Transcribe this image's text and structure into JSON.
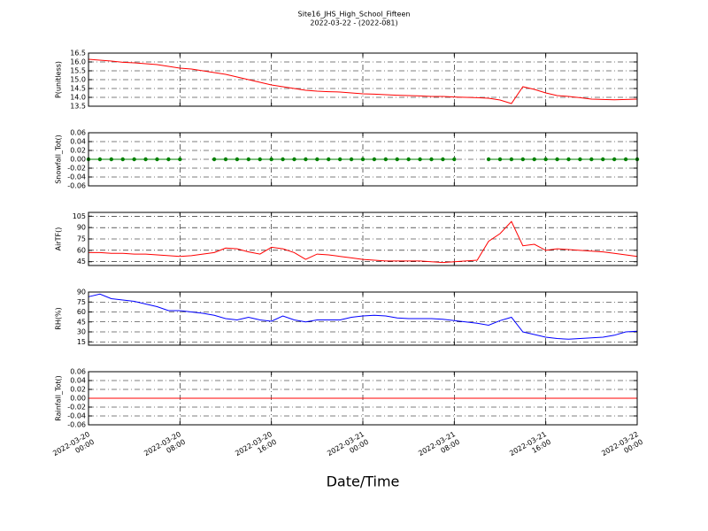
{
  "title": "Site16_JHS_High_School_Fifteen",
  "subtitle": "2022-03-22 - (2022-081)",
  "xlabel": "Date/Time",
  "xlim": [
    "2022-03-20 00:00",
    "2022-03-22 00:00"
  ],
  "xticks": [
    {
      "value": "2022-03-20 00:00",
      "label": "2022-03-20\n00:00"
    },
    {
      "value": "2022-03-20 08:00",
      "label": "2022-03-20\n08:00"
    },
    {
      "value": "2022-03-20 16:00",
      "label": "2022-03-20\n16:00"
    },
    {
      "value": "2022-03-21 00:00",
      "label": "2022-03-21\n00:00"
    },
    {
      "value": "2022-03-21 08:00",
      "label": "2022-03-21\n08:00"
    },
    {
      "value": "2022-03-21 16:00",
      "label": "2022-03-21\n16:00"
    },
    {
      "value": "2022-03-22 00:00",
      "label": "2022-03-22\n00:00"
    }
  ],
  "x": [
    "2022-03-20 00:00",
    "2022-03-20 01:00",
    "2022-03-20 02:00",
    "2022-03-20 03:00",
    "2022-03-20 04:00",
    "2022-03-20 05:00",
    "2022-03-20 06:00",
    "2022-03-20 07:00",
    "2022-03-20 08:00",
    "2022-03-20 09:00",
    "2022-03-20 10:00",
    "2022-03-20 11:00",
    "2022-03-20 12:00",
    "2022-03-20 13:00",
    "2022-03-20 14:00",
    "2022-03-20 15:00",
    "2022-03-20 16:00",
    "2022-03-20 17:00",
    "2022-03-20 18:00",
    "2022-03-20 19:00",
    "2022-03-20 20:00",
    "2022-03-20 21:00",
    "2022-03-20 22:00",
    "2022-03-20 23:00",
    "2022-03-21 00:00",
    "2022-03-21 01:00",
    "2022-03-21 02:00",
    "2022-03-21 03:00",
    "2022-03-21 04:00",
    "2022-03-21 05:00",
    "2022-03-21 06:00",
    "2022-03-21 07:00",
    "2022-03-21 08:00",
    "2022-03-21 09:00",
    "2022-03-21 10:00",
    "2022-03-21 11:00",
    "2022-03-21 12:00",
    "2022-03-21 13:00",
    "2022-03-21 14:00",
    "2022-03-21 15:00",
    "2022-03-21 16:00",
    "2022-03-21 17:00",
    "2022-03-21 18:00",
    "2022-03-21 19:00",
    "2022-03-21 20:00",
    "2022-03-21 21:00",
    "2022-03-21 22:00",
    "2022-03-21 23:00",
    "2022-03-22 00:00"
  ],
  "chart_data": [
    {
      "type": "line",
      "ylabel": "P(unitless)",
      "ylim": [
        13.5,
        16.5
      ],
      "grid": true,
      "color": "#ff0000",
      "yticks": [
        13.5,
        {
          "value": 14,
          "label": "14.0"
        },
        14.5,
        {
          "value": 15,
          "label": "15.0"
        },
        15.5,
        {
          "value": 16,
          "label": "16.0"
        },
        16.5
      ],
      "values": [
        16.15,
        16.1,
        16.05,
        15.98,
        15.95,
        15.9,
        15.85,
        15.75,
        15.65,
        15.6,
        15.5,
        15.4,
        15.3,
        15.15,
        15.0,
        14.85,
        14.7,
        14.6,
        14.5,
        14.4,
        14.35,
        14.32,
        14.3,
        14.25,
        14.2,
        14.18,
        14.15,
        14.12,
        14.1,
        14.08,
        14.05,
        14.05,
        14.02,
        14.0,
        13.98,
        13.95,
        13.85,
        13.65,
        14.6,
        14.45,
        14.25,
        14.1,
        14.05,
        13.98,
        13.9,
        13.88,
        13.86,
        13.88,
        13.9
      ]
    },
    {
      "type": "line",
      "ylabel": "Snowfall_Tot()",
      "ylim": [
        -0.06,
        0.06
      ],
      "grid": true,
      "color": "#008000",
      "marker": true,
      "yticks": [
        -0.06,
        -0.04,
        -0.02,
        {
          "value": 0,
          "label": "0.00"
        },
        0.02,
        0.04,
        0.06
      ],
      "values": [
        0,
        0,
        0,
        0,
        0,
        0,
        0,
        0,
        0,
        null,
        null,
        0,
        0,
        0,
        0,
        0,
        0,
        0,
        0,
        0,
        0,
        0,
        0,
        0,
        0,
        0,
        0,
        0,
        0,
        0,
        0,
        0,
        0,
        null,
        null,
        0,
        0,
        0,
        0,
        0,
        0,
        0,
        0,
        0,
        0,
        0,
        0,
        0,
        0
      ]
    },
    {
      "type": "line",
      "ylabel": "AirTF()",
      "ylim": [
        40,
        110
      ],
      "grid": true,
      "color": "#ff0000",
      "yticks": [
        45,
        60,
        75,
        90,
        105
      ],
      "values": [
        57,
        57,
        56,
        56,
        55,
        55,
        54,
        53,
        52,
        53,
        55,
        57,
        63,
        62,
        58,
        55,
        64,
        62,
        57,
        48,
        55,
        54,
        52,
        50,
        48,
        47,
        46,
        46,
        46,
        46,
        45,
        44,
        45,
        46,
        47,
        72,
        82,
        98,
        66,
        68,
        60,
        62,
        61,
        60,
        59,
        58,
        56,
        54,
        52
      ]
    },
    {
      "type": "line",
      "ylabel": "RH(%)",
      "ylim": [
        10,
        90
      ],
      "grid": true,
      "color": "#0000ff",
      "yticks": [
        15,
        30,
        45,
        60,
        75,
        90
      ],
      "values": [
        83,
        87,
        80,
        78,
        76,
        72,
        68,
        62,
        62,
        60,
        58,
        55,
        50,
        48,
        52,
        48,
        46,
        54,
        48,
        45,
        48,
        48,
        48,
        52,
        54,
        55,
        54,
        51,
        50,
        50,
        50,
        49,
        47,
        45,
        43,
        40,
        47,
        52,
        30,
        26,
        22,
        20,
        19,
        20,
        21,
        22,
        25,
        30,
        31
      ]
    },
    {
      "type": "line",
      "ylabel": "Rainfall_Tot()",
      "ylim": [
        -0.06,
        0.06
      ],
      "grid": true,
      "color": "#ff0000",
      "yticks": [
        -0.06,
        -0.04,
        -0.02,
        {
          "value": 0,
          "label": "0.00"
        },
        0.02,
        0.04,
        0.06
      ],
      "values": [
        0,
        0,
        0,
        0,
        0,
        0,
        0,
        0,
        0,
        0,
        0,
        0,
        0,
        0,
        0,
        0,
        0,
        0,
        0,
        0,
        0,
        0,
        0,
        0,
        0,
        0,
        0,
        0,
        0,
        0,
        0,
        0,
        0,
        0,
        0,
        0,
        0,
        0,
        0,
        0,
        0,
        0,
        0,
        0,
        0,
        0,
        0,
        0,
        0
      ]
    }
  ]
}
